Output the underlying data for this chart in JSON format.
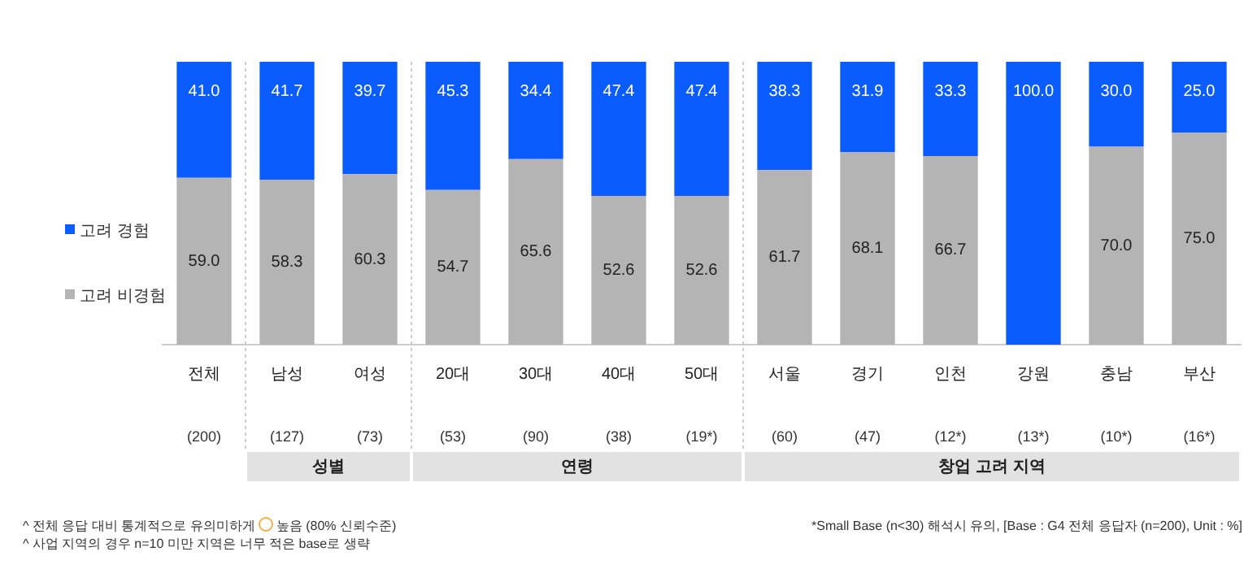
{
  "chart_data": {
    "type": "bar",
    "stacked": true,
    "legend": "left",
    "grid": false,
    "categories": [
      "전체",
      "남성",
      "여성",
      "20대",
      "30대",
      "40대",
      "50대",
      "서울",
      "경기",
      "인천",
      "강원",
      "충남",
      "부산"
    ],
    "series": [
      {
        "name": "고려 비경험",
        "color": "#b4b4b4",
        "values": [
          59.0,
          58.3,
          60.3,
          54.7,
          65.6,
          52.6,
          52.6,
          61.7,
          68.1,
          66.7,
          0,
          70.0,
          75.0
        ],
        "value_labels": [
          "59.0",
          "58.3",
          "60.3",
          "54.7",
          "65.6",
          "52.6",
          "52.6",
          "61.7",
          "68.1",
          "66.7",
          null,
          "70.0",
          "75.0"
        ]
      },
      {
        "name": "고려 경험",
        "color": "#0a5cff",
        "values": [
          41.0,
          41.7,
          39.7,
          45.3,
          34.4,
          47.4,
          47.4,
          38.3,
          31.9,
          33.3,
          100.0,
          30.0,
          25.0
        ],
        "value_labels": [
          "41.0",
          "41.7",
          "39.7",
          "45.3",
          "34.4",
          "47.4",
          "47.4",
          "38.3",
          "31.9",
          "33.3",
          "100.0",
          "30.0",
          "25.0"
        ]
      }
    ],
    "annotations": [
      "(200)",
      "(127)",
      "(73)",
      "(53)",
      "(90)",
      "(38)",
      "(19*)",
      "(60)",
      "(47)",
      "(12*)",
      "(13*)",
      "(10*)",
      "(16*)",
      "성별",
      "연령",
      "창업 고려 지역",
      "^ 전체 응답 대비 통계적으로 유의미하게",
      "높음 (80% 신뢰수준)",
      "^ 사업 지역의 경우 n=10 미만 지역은 너무 적은 base로 생략",
      "*Small Base (n<30) 해석시 유의, [Base : G4 전체 응답자 (n=200), Unit : %]"
    ]
  }
}
